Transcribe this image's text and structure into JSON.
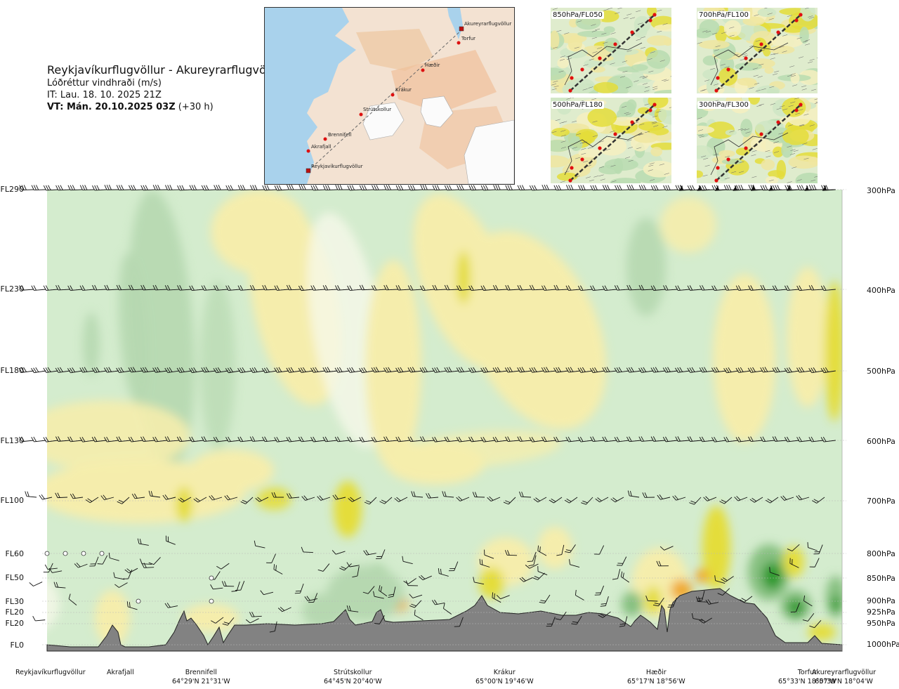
{
  "header": {
    "route": "Reykjavíkurflugvöllur - Akureyrarflugvöllur",
    "parameter": "Lóðréttur vindhraði (m/s)",
    "it_label": "IT: Lau. 18. 10. 2025 21Z",
    "vt_label": "VT: Mán. 20.10.2025 03Z",
    "vt_offset": "(+30 h)"
  },
  "route_map": {
    "points": [
      "Reykjavíkurflugvöllur",
      "Akrafjall",
      "Brennifell",
      "Strútskollur",
      "Krákur",
      "Hæðir",
      "Torfur",
      "Akureyrarflugvöllur"
    ]
  },
  "mini_maps": [
    {
      "label": "850hPa/FL050"
    },
    {
      "label": "700hPa/FL100"
    },
    {
      "label": "500hPa/FL180"
    },
    {
      "label": "300hPa/FL300"
    }
  ],
  "chart_data": {
    "type": "heatmap",
    "title": "Reykjavíkurflugvöllur - Akureyrarflugvöllur",
    "variable": "Lóðréttur vindhraði (m/s)",
    "colors": {
      "strong_up": "#e4dd3a",
      "weak_up": "#f5edac",
      "neutral": "#f6f8ea",
      "weak_down": "#d4ecce",
      "moderate_down": "#b6d8b0",
      "strong_down": "#86c080",
      "extreme_down": "#2d9a2d",
      "terrain": "#828282",
      "orange": "#f0a82a"
    },
    "left_axis_levels": [
      {
        "label": "FL290",
        "hpa": 300
      },
      {
        "label": "FL230",
        "hpa": 400
      },
      {
        "label": "FL180",
        "hpa": 500
      },
      {
        "label": "FL130",
        "hpa": 600
      },
      {
        "label": "FL100",
        "hpa": 700
      },
      {
        "label": "FL60",
        "hpa": 800
      },
      {
        "label": "FL50",
        "hpa": 850
      },
      {
        "label": "FL30",
        "hpa": 900
      },
      {
        "label": "FL20",
        "hpa": 925
      },
      {
        "label": "FL20",
        "hpa": 950
      },
      {
        "label": "FL0",
        "hpa": 1000
      }
    ],
    "right_axis_levels": [
      "300hPa",
      "400hPa",
      "500hPa",
      "600hPa",
      "700hPa",
      "800hPa",
      "850hPa",
      "900hPa",
      "925hPa",
      "950hPa",
      "1000hPa"
    ],
    "locations": [
      {
        "name": "Reykjavíkurflugvöllur",
        "coord": ""
      },
      {
        "name": "Akrafjall",
        "coord": ""
      },
      {
        "name": "Brennifell",
        "coord": "64°29'N 21°31'W"
      },
      {
        "name": "Strútskollur",
        "coord": "64°45'N 20°40'W"
      },
      {
        "name": "Krákur",
        "coord": "65°00'N 19°46'W"
      },
      {
        "name": "Hæðir",
        "coord": "65°17'N 18°56'W"
      },
      {
        "name": "Torfur",
        "coord": "65°33'N 18°07'W"
      },
      {
        "name": "Akureyrarflugvöllur",
        "coord": "65°39'N 18°04'W"
      }
    ]
  }
}
